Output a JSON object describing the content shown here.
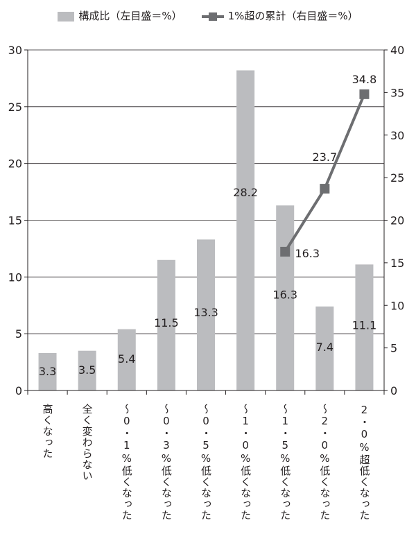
{
  "chart_data": {
    "type": "bar",
    "legend": [
      "構成比（左目盛＝%）",
      "1%超の累計（右目盛＝%）"
    ],
    "legend_position": "top",
    "categories": [
      "高くなった",
      "全く変わらない",
      "～0・1%低くなった",
      "～0・3%低くなった",
      "～0・5%低くなった",
      "～1・0%低くなった",
      "～1・5%低くなった",
      "～2・0%低くなった",
      "2・0%超低くなった"
    ],
    "series": [
      {
        "name": "構成比（左目盛＝%）",
        "type": "bar",
        "axis": "left",
        "values": [
          3.3,
          3.5,
          5.4,
          11.5,
          13.3,
          28.2,
          16.3,
          7.4,
          11.1
        ],
        "color": "#bbbcbf"
      },
      {
        "name": "1%超の累計（右目盛＝%）",
        "type": "line",
        "axis": "right",
        "values": [
          null,
          null,
          null,
          null,
          null,
          null,
          16.3,
          23.7,
          34.8
        ],
        "color": "#6d6e71"
      }
    ],
    "ylim_left": [
      0,
      30
    ],
    "yticks_left": [
      0,
      5,
      10,
      15,
      20,
      25,
      30
    ],
    "ylim_right": [
      0,
      40
    ],
    "yticks_right": [
      0,
      5,
      10,
      15,
      20,
      25,
      30,
      35,
      40
    ],
    "grid": true
  }
}
